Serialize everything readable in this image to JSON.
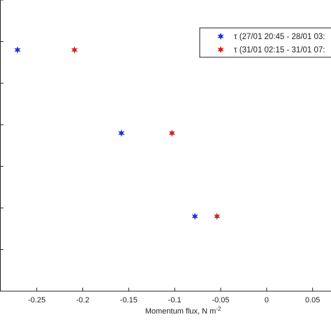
{
  "chart_data": {
    "type": "scatter",
    "xlabel": "Momentum flux, N m",
    "xlabel_superscript": "-2",
    "xlim": [
      -0.29,
      0.07
    ],
    "ylim": [
      0,
      7
    ],
    "x_ticks": [
      -0.25,
      -0.2,
      -0.15,
      -0.1,
      -0.05,
      0,
      0.05
    ],
    "x_tick_labels": [
      "-0.25",
      "-0.2",
      "-0.15",
      "-0.1",
      "-0.05",
      "0",
      "0.05"
    ],
    "y_ticks": [
      1,
      2,
      3,
      4,
      5,
      6,
      7
    ],
    "grid": false,
    "legend_position": "top-right",
    "series": [
      {
        "name": "τ (27/01 20:45 - 28/01 03:",
        "color": "#1a33d9",
        "points": [
          {
            "x": -0.271,
            "y": 5.8
          },
          {
            "x": -0.158,
            "y": 3.8
          },
          {
            "x": -0.078,
            "y": 1.8
          }
        ]
      },
      {
        "name": "τ (31/01 02:15 - 31/01 07:",
        "color": "#cc2020",
        "points": [
          {
            "x": -0.209,
            "y": 5.8
          },
          {
            "x": -0.103,
            "y": 3.8
          },
          {
            "x": -0.054,
            "y": 1.8
          }
        ]
      }
    ]
  }
}
